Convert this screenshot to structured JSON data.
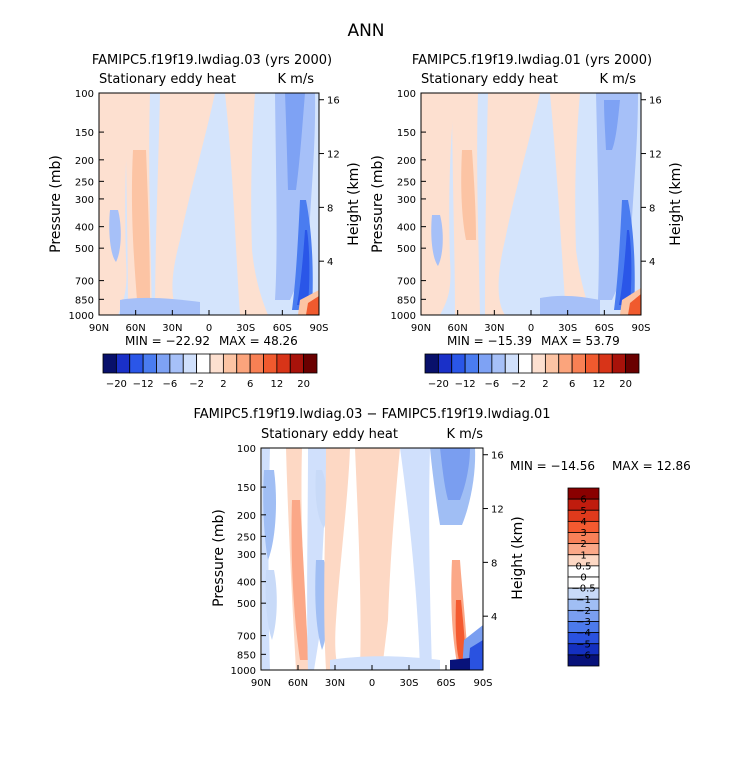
{
  "page_title": "ANN",
  "colors": {
    "bg": "#ffffff",
    "frame": "#000000",
    "neutral": "#ffffff"
  },
  "chart_data": [
    {
      "type": "heatmap",
      "title": "FAMIPC5.f19f19.lwdiag.03 (yrs 2000)",
      "subtitle_left": "Stationary eddy heat",
      "subtitle_right": "K m/s",
      "ylabel": "Pressure (mb)",
      "ylabel_right": "Height (km)",
      "x_ticks": [
        "90N",
        "60N",
        "30N",
        "0",
        "30S",
        "60S",
        "90S"
      ],
      "x_values": [
        90,
        60,
        30,
        0,
        -30,
        -60,
        -90
      ],
      "y_ticks": [
        "100",
        "150",
        "200",
        "250",
        "300",
        "400",
        "500",
        "700",
        "850",
        "1000"
      ],
      "y_values": [
        100,
        150,
        200,
        250,
        300,
        400,
        500,
        700,
        850,
        1000
      ],
      "height_ticks": [
        "16",
        "12",
        "8",
        "4"
      ],
      "height_values": [
        16,
        12,
        8,
        4
      ],
      "min_label": "MIN = −22.92",
      "max_label": "MAX =  48.26",
      "min": -22.92,
      "max": 48.26,
      "colorbar_labels": [
        "−20",
        "−12",
        "−6",
        "−2",
        "2",
        "6",
        "12",
        "20"
      ],
      "colorbar_colors": [
        "#08106b",
        "#1a30c8",
        "#2a56e8",
        "#4a7cf0",
        "#7ea2f4",
        "#a6c0f8",
        "#d0e0fc",
        "#ffffff",
        "#fde0d0",
        "#fcc4a4",
        "#fba47c",
        "#f88054",
        "#f05a2e",
        "#d83418",
        "#a8120a",
        "#6a0000"
      ]
    },
    {
      "type": "heatmap",
      "title": "FAMIPC5.f19f19.lwdiag.01 (yrs 2000)",
      "subtitle_left": "Stationary eddy heat",
      "subtitle_right": "K m/s",
      "ylabel": "Pressure (mb)",
      "ylabel_right": "Height (km)",
      "x_ticks": [
        "90N",
        "60N",
        "30N",
        "0",
        "30S",
        "60S",
        "90S"
      ],
      "x_values": [
        90,
        60,
        30,
        0,
        -30,
        -60,
        -90
      ],
      "y_ticks": [
        "100",
        "150",
        "200",
        "250",
        "300",
        "400",
        "500",
        "700",
        "850",
        "1000"
      ],
      "y_values": [
        100,
        150,
        200,
        250,
        300,
        400,
        500,
        700,
        850,
        1000
      ],
      "height_ticks": [
        "16",
        "12",
        "8",
        "4"
      ],
      "height_values": [
        16,
        12,
        8,
        4
      ],
      "min_label": "MIN = −15.39",
      "max_label": "MAX =  53.79",
      "min": -15.39,
      "max": 53.79,
      "colorbar_labels": [
        "−20",
        "−12",
        "−6",
        "−2",
        "2",
        "6",
        "12",
        "20"
      ],
      "colorbar_colors": [
        "#08106b",
        "#1a30c8",
        "#2a56e8",
        "#4a7cf0",
        "#7ea2f4",
        "#a6c0f8",
        "#d0e0fc",
        "#ffffff",
        "#fde0d0",
        "#fcc4a4",
        "#fba47c",
        "#f88054",
        "#f05a2e",
        "#d83418",
        "#a8120a",
        "#6a0000"
      ]
    },
    {
      "type": "heatmap",
      "title": "FAMIPC5.f19f19.lwdiag.03 − FAMIPC5.f19f19.lwdiag.01",
      "subtitle_left": "Stationary eddy heat",
      "subtitle_right": "K m/s",
      "ylabel": "Pressure (mb)",
      "ylabel_right": "Height (km)",
      "x_ticks": [
        "90N",
        "60N",
        "30N",
        "0",
        "30S",
        "60S",
        "90S"
      ],
      "x_values": [
        90,
        60,
        30,
        0,
        -30,
        -60,
        -90
      ],
      "y_ticks": [
        "100",
        "150",
        "200",
        "250",
        "300",
        "400",
        "500",
        "700",
        "850",
        "1000"
      ],
      "y_values": [
        100,
        150,
        200,
        250,
        300,
        400,
        500,
        700,
        850,
        1000
      ],
      "height_ticks": [
        "16",
        "12",
        "8",
        "4"
      ],
      "height_values": [
        16,
        12,
        8,
        4
      ],
      "min_label": "MIN = −14.56",
      "max_label": "MAX =  12.86",
      "min": -14.56,
      "max": 12.86,
      "colorbar_labels": [
        "6",
        "5",
        "4",
        "3",
        "2",
        "1",
        "0.5",
        "0",
        "−0.5",
        "−1",
        "−2",
        "−3",
        "−4",
        "−5",
        "−6"
      ],
      "colorbar_colors": [
        "#8a0000",
        "#c01c0e",
        "#e03a1c",
        "#f45a30",
        "#f88058",
        "#fba888",
        "#fdd8c4",
        "#ffffff",
        "#ffffff",
        "#c8daf8",
        "#a0bef4",
        "#7a9ef0",
        "#4c7aec",
        "#2a52e0",
        "#1430c0",
        "#08127a"
      ]
    }
  ]
}
